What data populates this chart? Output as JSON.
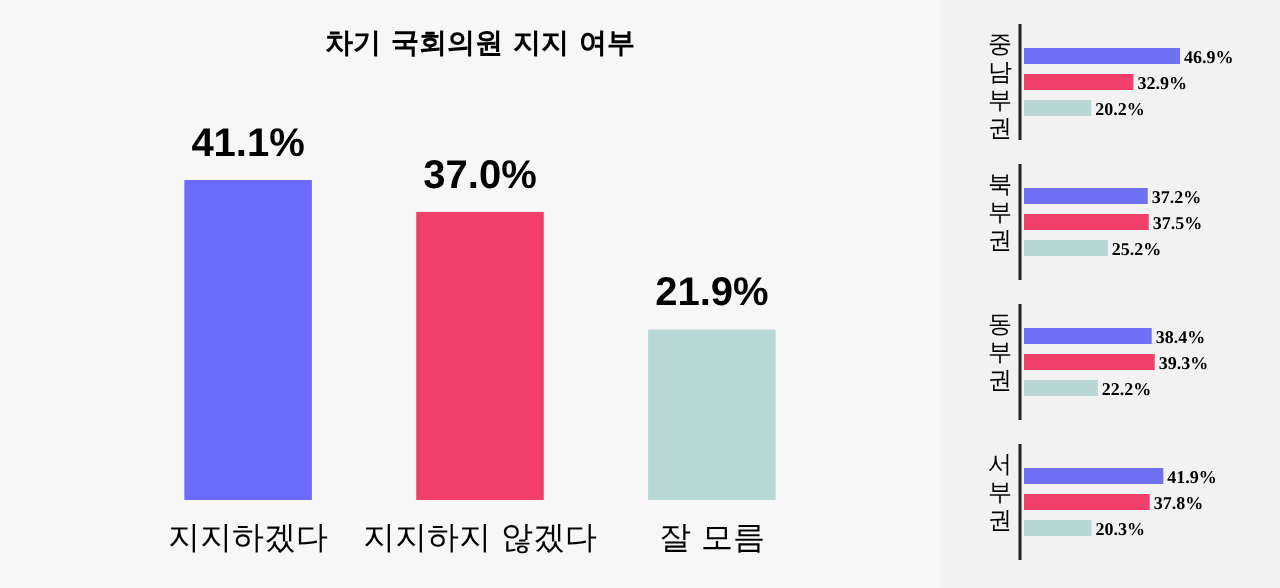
{
  "chart_data": [
    {
      "type": "bar",
      "title": "차기 국회의원 지지 여부",
      "categories": [
        "지지하겠다",
        "지지하지 않겠다",
        "잘 모름"
      ],
      "values": [
        41.1,
        37.0,
        21.9
      ],
      "value_labels": [
        "41.1%",
        "37.0%",
        "21.9%"
      ],
      "colors": [
        "#6b6bff",
        "#f0406a",
        "#b8d8d6"
      ]
    },
    {
      "type": "bar",
      "orientation": "horizontal",
      "categories": [
        "중남부권",
        "북부권",
        "동부권",
        "서부권"
      ],
      "series": [
        {
          "color": "#7070f5",
          "values": [
            46.9,
            37.2,
            38.4,
            41.9
          ],
          "value_labels": [
            "46.9%",
            "37.2%",
            "38.4%",
            "41.9%"
          ]
        },
        {
          "color": "#f0406a",
          "values": [
            32.9,
            37.5,
            39.3,
            37.8
          ],
          "value_labels": [
            "32.9%",
            "37.5%",
            "39.3%",
            "37.8%"
          ]
        },
        {
          "color": "#b8d6d3",
          "values": [
            20.2,
            25.2,
            22.2,
            20.3
          ],
          "value_labels": [
            "20.2%",
            "25.2%",
            "22.2%",
            "20.3%"
          ]
        }
      ]
    }
  ]
}
